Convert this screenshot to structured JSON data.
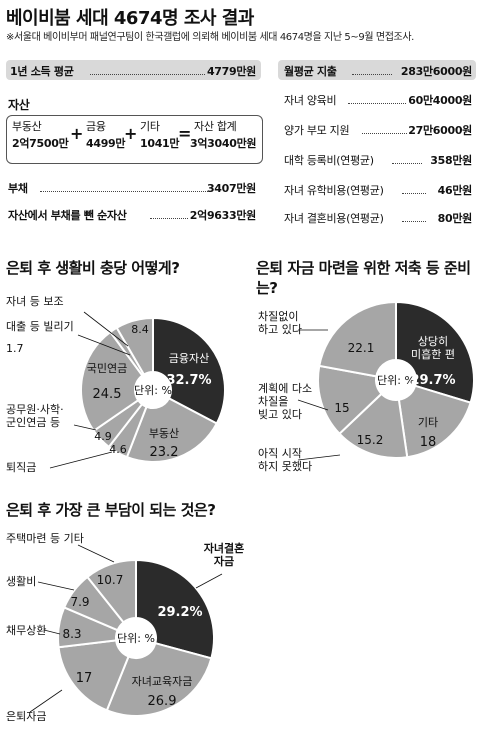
{
  "header": {
    "title": "베이비붐 세대 4674명 조사 결과",
    "source": "※서울대 베이비부머 패널연구팀이 한국갤럽에 의뢰해 베이비붐 세대 4674명을 지난 5~9월 면접조사."
  },
  "income": {
    "label": "1년 소득 평균",
    "value": "4779만원"
  },
  "spending": {
    "label": "월평균 지출",
    "value": "283만6000원",
    "items": [
      {
        "label": "자녀 양육비",
        "value": "60만4000원"
      },
      {
        "label": "양가 부모 지원",
        "value": "27만6000원"
      },
      {
        "label": "대학 등록비(연평균)",
        "value": "358만원"
      },
      {
        "label": "자녀 유학비용(연평균)",
        "value": "46만원"
      },
      {
        "label": "자녀 결혼비용(연평균)",
        "value": "80만원"
      }
    ]
  },
  "assets": {
    "heading": "자산",
    "realestate_label": "부동산",
    "realestate_value": "2억7500만",
    "financial_label": "금융",
    "financial_value": "4499만",
    "other_label": "기타",
    "other_value": "1041만",
    "total_label": "자산 합계",
    "total_value": "3억3040만원",
    "op_plus": "+",
    "op_eq": "=",
    "debt_label": "부채",
    "debt_value": "3407만원",
    "net_label": "자산에서 부채를 뺀 순자산",
    "net_value": "2억9633만원"
  },
  "chart_data": [
    {
      "type": "pie",
      "title": "은퇴 후 생활비 충당 어떻게?",
      "center_label": "단위: %",
      "slices": [
        {
          "label": "금융자산",
          "value": 32.7,
          "color": "#2b2b2b"
        },
        {
          "label": "부동산",
          "value": 23.2,
          "color": "#a6a6a6"
        },
        {
          "label": "퇴직금",
          "value": 4.6,
          "color": "#a6a6a6"
        },
        {
          "label": "공무원·사학·군인연금 등",
          "value": 4.9,
          "color": "#a6a6a6"
        },
        {
          "label": "국민연금",
          "value": 24.5,
          "color": "#a6a6a6"
        },
        {
          "label": "대출 등 빌리기",
          "value": 1.7,
          "color": "#a6a6a6"
        },
        {
          "label": "자녀 등 보조",
          "value": 8.4,
          "color": "#a6a6a6"
        }
      ]
    },
    {
      "type": "pie",
      "title": "은퇴 자금 마련을 위한 저축 등 준비는?",
      "center_label": "단위: %",
      "slices": [
        {
          "label": "상당히 미흡한 편",
          "value": 29.7,
          "color": "#2b2b2b"
        },
        {
          "label": "기타",
          "value": 18,
          "color": "#a6a6a6"
        },
        {
          "label": "아직 시작 하지 못했다",
          "value": 15.2,
          "color": "#a6a6a6"
        },
        {
          "label": "계획에 다소 차질을 빚고 있다",
          "value": 15.0,
          "color": "#a6a6a6"
        },
        {
          "label": "차질없이 하고 있다",
          "value": 22.1,
          "color": "#a6a6a6"
        }
      ]
    },
    {
      "type": "pie",
      "title": "은퇴 후 가장 큰 부담이 되는 것은?",
      "center_label": "단위: %",
      "slices": [
        {
          "label": "자녀결혼 자금",
          "value": 29.2,
          "color": "#2b2b2b"
        },
        {
          "label": "자녀교육자금",
          "value": 26.9,
          "color": "#a6a6a6"
        },
        {
          "label": "은퇴자금",
          "value": 17,
          "color": "#a6a6a6"
        },
        {
          "label": "채무상환",
          "value": 8.3,
          "color": "#a6a6a6"
        },
        {
          "label": "생활비",
          "value": 7.9,
          "color": "#a6a6a6"
        },
        {
          "label": "주택마련 등 기타",
          "value": 10.7,
          "color": "#a6a6a6"
        }
      ]
    }
  ]
}
